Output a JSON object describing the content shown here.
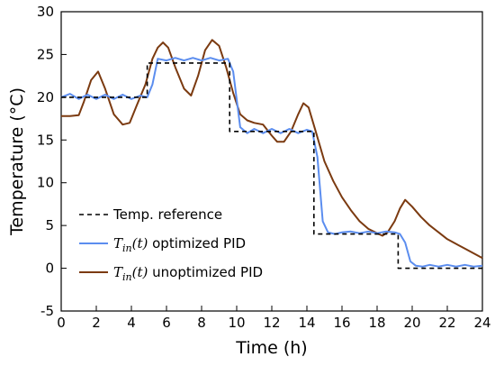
{
  "chart_data": {
    "type": "line",
    "xlabel": "Time (h)",
    "ylabel": "Temperature (°C)",
    "xlim": [
      0,
      24
    ],
    "ylim": [
      -5,
      30
    ],
    "xticks": [
      0,
      2,
      4,
      6,
      8,
      10,
      12,
      14,
      16,
      18,
      20,
      22,
      24
    ],
    "yticks": [
      -5,
      0,
      5,
      10,
      15,
      20,
      25,
      30
    ],
    "grid": false,
    "legend_position": "bottom-left",
    "series": [
      {
        "name": "Temp. reference",
        "style": "dashed",
        "color": "#000000",
        "x": [
          0,
          4.9,
          4.9,
          9.6,
          9.6,
          14.4,
          14.4,
          19.2,
          19.2,
          24
        ],
        "y": [
          20,
          20,
          24,
          24,
          16,
          16,
          4,
          4,
          0,
          0
        ]
      },
      {
        "name": "T_in(t) optimized PID",
        "legend_math": "T",
        "legend_sub": "in",
        "legend_arg": "(t)",
        "legend_suffix": " optimized PID",
        "style": "solid",
        "color": "#5b8def",
        "x": [
          0,
          0.5,
          1,
          1.5,
          2,
          2.5,
          3,
          3.5,
          4,
          4.5,
          4.9,
          5.2,
          5.5,
          6,
          6.5,
          7,
          7.5,
          8,
          8.5,
          9,
          9.5,
          9.8,
          10.2,
          10.6,
          11,
          11.5,
          12,
          12.5,
          13,
          13.5,
          14,
          14.3,
          14.6,
          14.9,
          15.2,
          15.6,
          16,
          16.5,
          17,
          17.5,
          18,
          18.5,
          19,
          19.3,
          19.6,
          19.9,
          20.2,
          20.6,
          21,
          21.5,
          22,
          22.5,
          23,
          23.5,
          24
        ],
        "y": [
          20,
          20.4,
          19.8,
          20.3,
          19.8,
          20.3,
          19.8,
          20.3,
          19.8,
          20.2,
          20,
          21.5,
          24.5,
          24.3,
          24.6,
          24.3,
          24.6,
          24.3,
          24.6,
          24.3,
          24.5,
          23,
          16.5,
          15.8,
          16.3,
          15.8,
          16.3,
          15.8,
          16.3,
          15.8,
          16.2,
          16,
          13,
          5.5,
          4.2,
          4,
          4.2,
          4.3,
          4.1,
          4.3,
          4.1,
          4.3,
          4.2,
          4,
          3,
          0.8,
          0.3,
          0.2,
          0.4,
          0.2,
          0.4,
          0.2,
          0.4,
          0.2,
          0.3
        ]
      },
      {
        "name": "T_in(t) unoptimized PID",
        "legend_math": "T",
        "legend_sub": "in",
        "legend_arg": "(t)",
        "legend_suffix": " unoptimized PID",
        "style": "solid",
        "color": "#7b3a10",
        "x": [
          0,
          0.5,
          1,
          1.3,
          1.7,
          2.1,
          2.5,
          3,
          3.5,
          3.9,
          4.3,
          4.8,
          5.2,
          5.5,
          5.8,
          6.1,
          6.5,
          7,
          7.4,
          7.8,
          8.2,
          8.6,
          9,
          9.4,
          9.8,
          10.2,
          10.6,
          11,
          11.5,
          12,
          12.3,
          12.7,
          13.1,
          13.5,
          13.8,
          14.1,
          14.5,
          15,
          15.5,
          16,
          16.5,
          17,
          17.5,
          18,
          18.3,
          18.6,
          19,
          19.3,
          19.6,
          20,
          20.5,
          21,
          21.5,
          22,
          23,
          24
        ],
        "y": [
          17.8,
          17.8,
          17.9,
          19.5,
          22,
          23,
          21,
          18,
          16.8,
          17,
          19,
          21.5,
          24.5,
          25.8,
          26.4,
          25.8,
          23.5,
          21,
          20.2,
          22.5,
          25.5,
          26.7,
          26,
          23.5,
          20.5,
          18,
          17.3,
          17,
          16.8,
          15.5,
          14.8,
          14.8,
          16,
          18,
          19.3,
          18.8,
          16,
          12.5,
          10.2,
          8.3,
          6.8,
          5.5,
          4.6,
          4.1,
          3.8,
          4.2,
          5.5,
          7,
          8,
          7.2,
          6,
          5,
          4.2,
          3.4,
          2.3,
          1.2
        ]
      }
    ]
  }
}
